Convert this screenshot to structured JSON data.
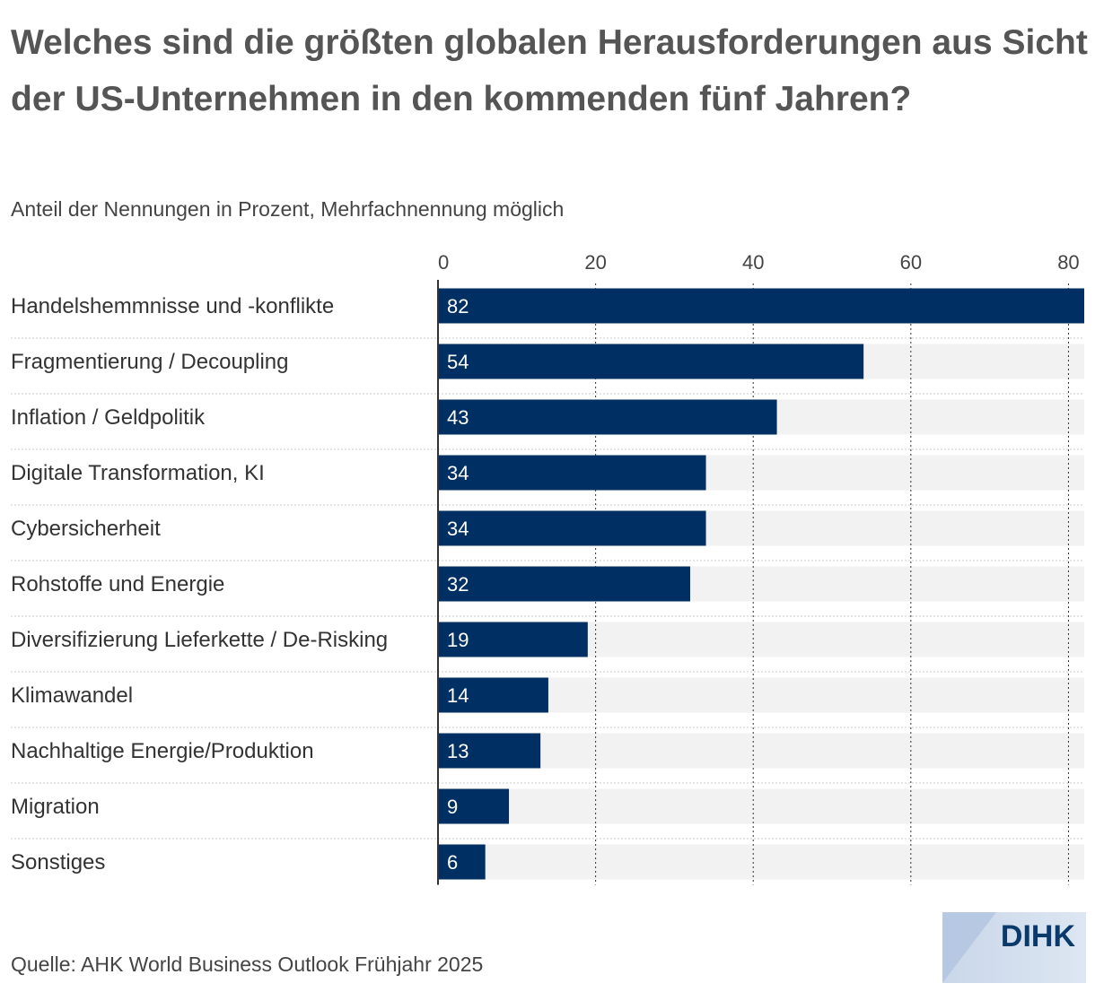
{
  "header": {
    "title": "Welches sind die größten globalen Herausforderungen aus Sicht der US-Unternehmen in den kommenden fünf Jahren?",
    "subtitle": "Anteil der Nennungen in Prozent, Mehrfachnennung möglich"
  },
  "footer": {
    "source": "Quelle: AHK World Business Outlook Frühjahr 2025",
    "logo_text": "DIHK"
  },
  "colors": {
    "bar": "#002f63",
    "track": "#f2f2f2",
    "grid": "#333333",
    "label_inside": "#ffffff"
  },
  "chart_data": {
    "type": "bar",
    "orientation": "horizontal",
    "title": "Welches sind die größten globalen Herausforderungen aus Sicht der US-Unternehmen in den kommenden fünf Jahren?",
    "subtitle": "Anteil der Nennungen in Prozent, Mehrfachnennung möglich",
    "categories": [
      "Handelshemmnisse und -konflikte",
      "Fragmentierung / Decoupling",
      "Inflation / Geldpolitik",
      "Digitale Transformation, KI",
      "Cybersicherheit",
      "Rohstoffe und Energie",
      "Diversifizierung Lieferkette / De-Risking",
      "Klimawandel",
      "Nachhaltige Energie/Produktion",
      "Migration",
      "Sonstiges"
    ],
    "values": [
      82,
      54,
      43,
      34,
      34,
      32,
      19,
      14,
      13,
      9,
      6
    ],
    "data_labels": [
      "82",
      "54",
      "43",
      "34",
      "34",
      "32",
      "19",
      "14",
      "13",
      "9",
      "6"
    ],
    "xlim": [
      0,
      82
    ],
    "xticks": [
      0,
      20,
      40,
      60,
      80
    ],
    "xtick_labels": [
      "0",
      "20",
      "40",
      "60",
      "80"
    ],
    "axis_position": "top",
    "grid": true,
    "grid_style": "dotted",
    "legend": false
  }
}
